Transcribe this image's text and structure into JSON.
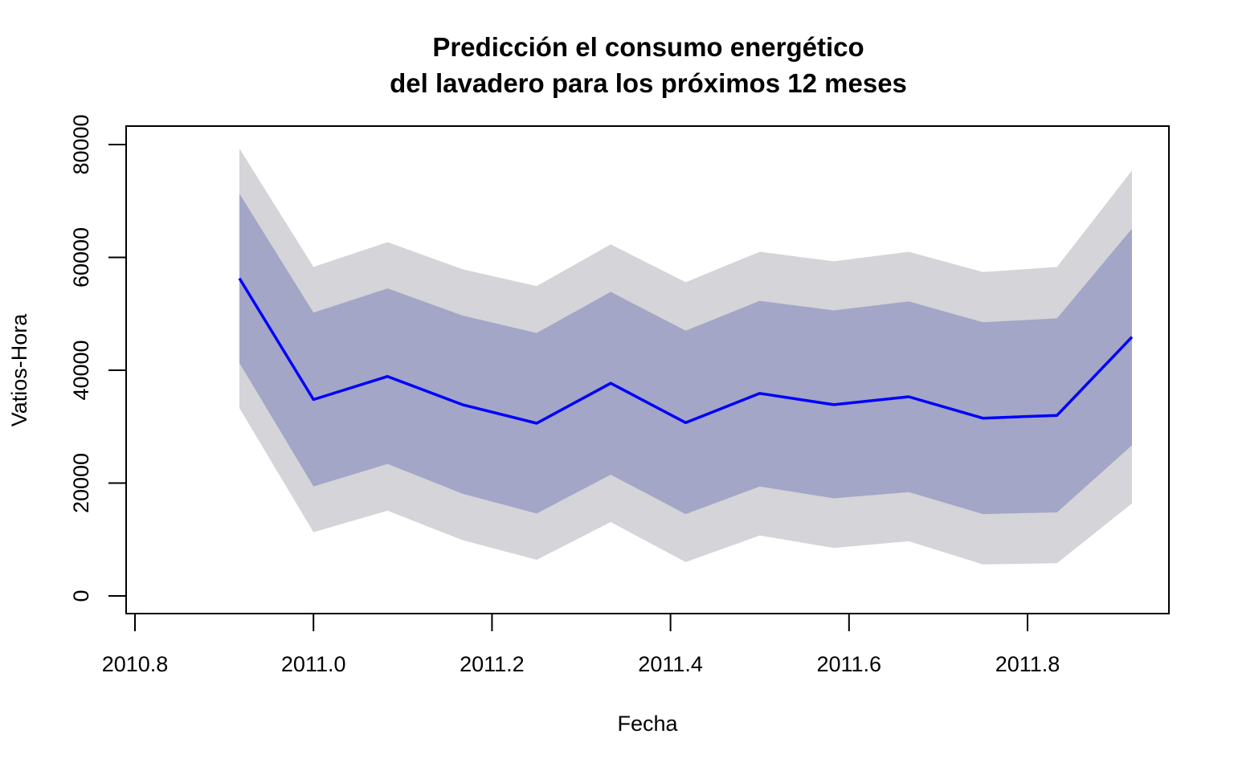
{
  "chart_data": {
    "type": "area",
    "title_lines": [
      "Predicción el consumo energético",
      "del lavadero para los próximos 12 meses"
    ],
    "xlabel": "Fecha",
    "ylabel": "Vatios-Hora",
    "xlim": [
      2010.8,
      2011.96
    ],
    "ylim": [
      0,
      83000
    ],
    "x_ticks": [
      2010.8,
      2011.0,
      2011.2,
      2011.4,
      2011.6,
      2011.8
    ],
    "x_tick_labels": [
      "2010.8",
      "2011.0",
      "2011.2",
      "2011.4",
      "2011.6",
      "2011.8"
    ],
    "y_ticks": [
      0,
      20000,
      40000,
      60000,
      80000
    ],
    "y_tick_labels": [
      "0",
      "20000",
      "40000",
      "60000",
      "80000"
    ],
    "x": [
      2010.917,
      2011.0,
      2011.083,
      2011.167,
      2011.25,
      2011.333,
      2011.417,
      2011.5,
      2011.583,
      2011.667,
      2011.75,
      2011.833,
      2011.917
    ],
    "series": [
      {
        "role": "forecast",
        "values": [
          56300,
          34800,
          38900,
          33900,
          30600,
          37700,
          30700,
          35900,
          33900,
          35300,
          31500,
          32000,
          45900
        ],
        "color": "#0000ff"
      },
      {
        "role": "interval_80",
        "lower": [
          41300,
          19400,
          23400,
          18100,
          14600,
          21500,
          14500,
          19400,
          17300,
          18400,
          14500,
          14800,
          26700
        ],
        "upper": [
          71300,
          50200,
          54500,
          49700,
          46600,
          53900,
          47000,
          52300,
          50600,
          52200,
          48500,
          49200,
          65100
        ],
        "color": "#a3a6c6"
      },
      {
        "role": "interval_95",
        "lower": [
          33300,
          11300,
          15100,
          9900,
          6400,
          13100,
          6000,
          10700,
          8500,
          9700,
          5600,
          5800,
          16400
        ],
        "upper": [
          79300,
          58300,
          62700,
          57900,
          54900,
          62300,
          55600,
          61000,
          59300,
          61000,
          57400,
          58300,
          75400
        ],
        "color": "#d4d4d9"
      }
    ],
    "grid": false,
    "legend": "none"
  }
}
